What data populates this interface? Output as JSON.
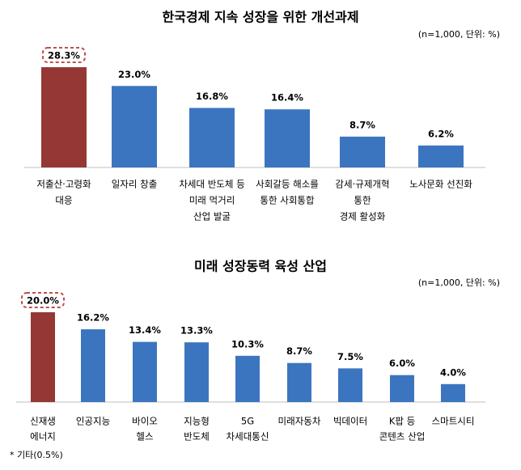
{
  "chart_data": [
    {
      "type": "bar",
      "title": "한국경제 지속 성장을 위한 개선과제",
      "subtitle": "(n=1,000, 단위: %)",
      "categories": [
        [
          "저출산·고령화",
          "대응"
        ],
        [
          "일자리 창출"
        ],
        [
          "차세대 반도체 등",
          "미래 먹거리",
          "산업 발굴"
        ],
        [
          "사회갈등 해소를",
          "통한 사회통합"
        ],
        [
          "감세·규제개혁",
          "통한",
          "경제 활성화"
        ],
        [
          "노사문화 선진화"
        ]
      ],
      "values": [
        28.3,
        23.0,
        16.8,
        16.4,
        8.7,
        6.2
      ],
      "value_labels": [
        "28.3%",
        "23.0%",
        "16.8%",
        "16.4%",
        "8.7%",
        "6.2%"
      ],
      "colors": [
        "#953735",
        "#3c75bf",
        "#3c75bf",
        "#3c75bf",
        "#3c75bf",
        "#3c75bf"
      ]
    },
    {
      "type": "bar",
      "title": "미래 성장동력 육성 산업",
      "subtitle": "(n=1,000, 단위: %)",
      "categories": [
        [
          "신재생",
          "에너지"
        ],
        [
          "인공지능"
        ],
        [
          "바이오",
          "헬스"
        ],
        [
          "지능형",
          "반도체"
        ],
        [
          "5G",
          "차세대통신"
        ],
        [
          "미래자동차"
        ],
        [
          "빅데이터"
        ],
        [
          "K팝 등",
          "콘텐츠 산업"
        ],
        [
          "스마트시티"
        ]
      ],
      "values": [
        20.0,
        16.2,
        13.4,
        13.3,
        10.3,
        8.7,
        7.5,
        6.0,
        4.0
      ],
      "value_labels": [
        "20.0%",
        "16.2%",
        "13.4%",
        "13.3%",
        "10.3%",
        "8.7%",
        "7.5%",
        "6.0%",
        "4.0%"
      ],
      "colors": [
        "#953735",
        "#3c75bf",
        "#3c75bf",
        "#3c75bf",
        "#3c75bf",
        "#3c75bf",
        "#3c75bf",
        "#3c75bf",
        "#3c75bf"
      ]
    }
  ],
  "footnote": "* 기타(0.5%)"
}
